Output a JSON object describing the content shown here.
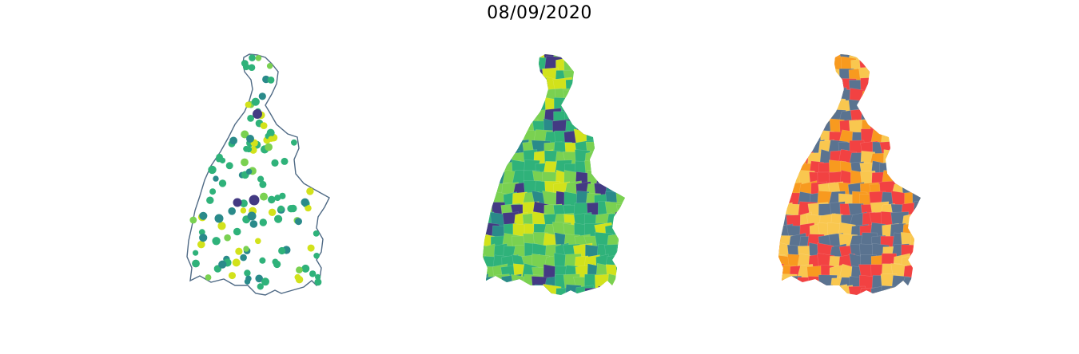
{
  "figure": {
    "title": "08/09/2020"
  },
  "colors": {
    "outline": "#4f6a85",
    "viridis_dark": "#433a83",
    "viridis_mid": "#2a8a8a",
    "viridis_green": "#2fb27a",
    "viridis_light": "#7ad151",
    "viridis_yellow": "#d2e21b",
    "category_gray": "#5a7390",
    "category_red": "#f24242",
    "category_yellow": "#f9c74f",
    "category_orange": "#f89a1f"
  },
  "maps": [
    {
      "name": "bubble-map",
      "style": "proportional-circles"
    },
    {
      "name": "choropleth-map",
      "style": "viridis-choropleth"
    },
    {
      "name": "category-map",
      "style": "categorical-choropleth"
    }
  ]
}
